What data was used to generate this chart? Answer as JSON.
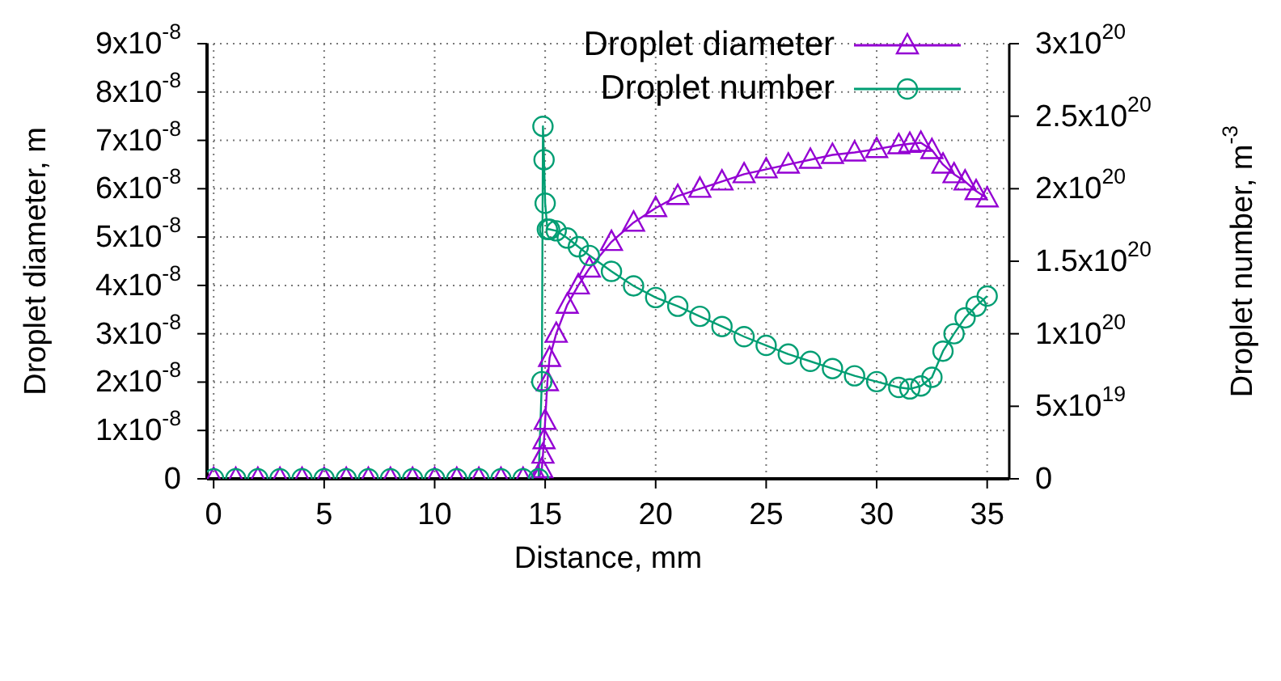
{
  "chart_data": {
    "type": "line",
    "xlabel": "Distance, mm",
    "ylabel": "Droplet diameter, m",
    "y2label": "Droplet number, m$^{-3}$",
    "x": [
      0,
      1,
      2,
      3,
      4,
      5,
      6,
      7,
      8,
      9,
      10,
      11,
      12,
      13,
      14,
      14.7,
      14.85,
      14.9,
      14.95,
      15,
      15.1,
      15.2,
      15.5,
      16,
      16.5,
      17,
      18,
      19,
      20,
      21,
      22,
      23,
      24,
      25,
      26,
      27,
      28,
      29,
      30,
      31,
      31.5,
      32,
      32.5,
      33,
      33.5,
      34,
      34.5,
      35
    ],
    "series": [
      {
        "name": "Droplet diameter",
        "color": "#9400d3",
        "marker": "triangle",
        "values": [
          0,
          0,
          0,
          0,
          0,
          0,
          0,
          0,
          0,
          0,
          0,
          0,
          0,
          0,
          0,
          0,
          2e-09,
          5e-09,
          8e-09,
          1.2e-08,
          2e-08,
          2.5e-08,
          3e-08,
          3.6e-08,
          4e-08,
          4.35e-08,
          4.9e-08,
          5.3e-08,
          5.6e-08,
          5.85e-08,
          6e-08,
          6.15e-08,
          6.3e-08,
          6.4e-08,
          6.5e-08,
          6.6e-08,
          6.7e-08,
          6.75e-08,
          6.82e-08,
          6.9e-08,
          6.93e-08,
          6.95e-08,
          6.8e-08,
          6.5e-08,
          6.3e-08,
          6.15e-08,
          5.95e-08,
          5.8e-08
        ]
      },
      {
        "name": "Droplet number",
        "color": "#009e73",
        "marker": "circle",
        "axis": "y2",
        "values": [
          0,
          0,
          0,
          0,
          0,
          0,
          0,
          0,
          0,
          0,
          0,
          0,
          0,
          0,
          0,
          0,
          6.7e+19,
          2.43e+20,
          2.2e+20,
          1.9e+20,
          1.72e+20,
          1.72e+20,
          1.71e+20,
          1.66e+20,
          1.6e+20,
          1.54e+20,
          1.43e+20,
          1.33e+20,
          1.25e+20,
          1.19e+20,
          1.12e+20,
          1.05e+20,
          9.8e+19,
          9.2e+19,
          8.6e+19,
          8.1e+19,
          7.6e+19,
          7.1e+19,
          6.7e+19,
          6.3e+19,
          6.2e+19,
          6.4e+19,
          7e+19,
          8.8e+19,
          1e+20,
          1.11e+20,
          1.19e+20,
          1.26e+20
        ]
      }
    ],
    "xlim": [
      -0.3,
      36
    ],
    "xticks": [
      0,
      5,
      10,
      15,
      20,
      25,
      30,
      35
    ],
    "ylim": [
      0,
      9e-08
    ],
    "yticks": [
      0,
      {
        "value": 1e-08,
        "label": "1x10$^{-8}$"
      },
      {
        "value": 2e-08,
        "label": "2x10$^{-8}$"
      },
      {
        "value": 3e-08,
        "label": "3x10$^{-8}$"
      },
      {
        "value": 4e-08,
        "label": "4x10$^{-8}$"
      },
      {
        "value": 5e-08,
        "label": "5x10$^{-8}$"
      },
      {
        "value": 6e-08,
        "label": "6x10$^{-8}$"
      },
      {
        "value": 7e-08,
        "label": "7x10$^{-8}$"
      },
      {
        "value": 8e-08,
        "label": "8x10$^{-8}$"
      },
      {
        "value": 9e-08,
        "label": "9x10$^{-8}$"
      }
    ],
    "y2lim": [
      0,
      3e+20
    ],
    "y2ticks": [
      0,
      {
        "value": 5e+19,
        "label": "5x10$^{19}$"
      },
      {
        "value": 1e+20,
        "label": "1x10$^{20}$"
      },
      {
        "value": 1.5e+20,
        "label": "1.5x10$^{20}$"
      },
      {
        "value": 2e+20,
        "label": "2x10$^{20}$"
      },
      {
        "value": 2.5e+20,
        "label": "2.5x10$^{20}$"
      },
      {
        "value": 3e+20,
        "label": "3x10$^{20}$"
      }
    ],
    "grid": true,
    "legend": "top right",
    "line_style": "solid"
  }
}
